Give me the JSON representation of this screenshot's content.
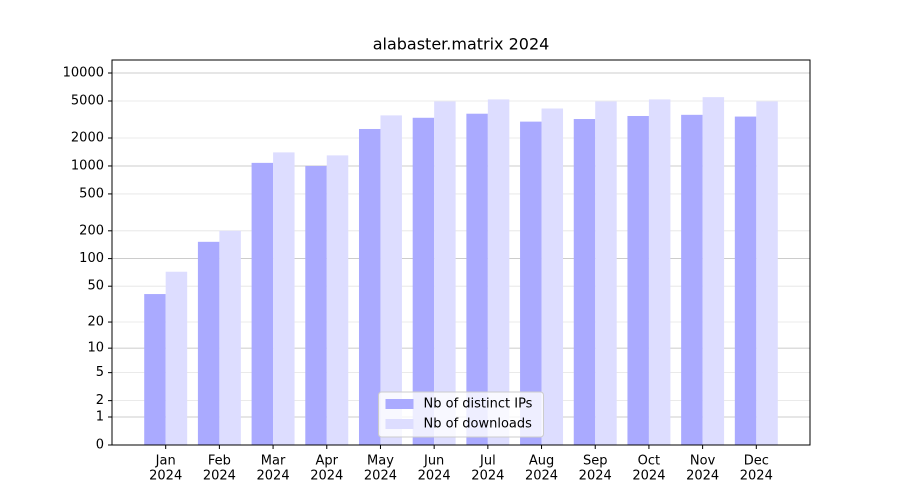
{
  "chart_data": {
    "type": "bar",
    "title": "alabaster.matrix 2024",
    "categories": [
      [
        "Jan",
        "2024"
      ],
      [
        "Feb",
        "2024"
      ],
      [
        "Mar",
        "2024"
      ],
      [
        "Apr",
        "2024"
      ],
      [
        "May",
        "2024"
      ],
      [
        "Jun",
        "2024"
      ],
      [
        "Jul",
        "2024"
      ],
      [
        "Aug",
        "2024"
      ],
      [
        "Sep",
        "2024"
      ],
      [
        "Oct",
        "2024"
      ],
      [
        "Nov",
        "2024"
      ],
      [
        "Dec",
        "2024"
      ]
    ],
    "series": [
      {
        "name": "Nb of distinct IPs",
        "color": "#aaaaff",
        "values": [
          41,
          152,
          1080,
          1000,
          2500,
          3300,
          3650,
          3000,
          3200,
          3450,
          3550,
          3400
        ]
      },
      {
        "name": "Nb of downloads",
        "color": "#ddddff",
        "values": [
          72,
          200,
          1400,
          1300,
          3500,
          4950,
          5200,
          4150,
          4950,
          5200,
          5500,
          4950
        ]
      }
    ],
    "yscale": "log1p",
    "ylim": [
      0,
      13800
    ],
    "yticks": [
      0,
      1,
      2,
      5,
      10,
      20,
      50,
      100,
      200,
      500,
      1000,
      2000,
      5000,
      10000
    ],
    "grid": true,
    "legend": "lower center"
  }
}
